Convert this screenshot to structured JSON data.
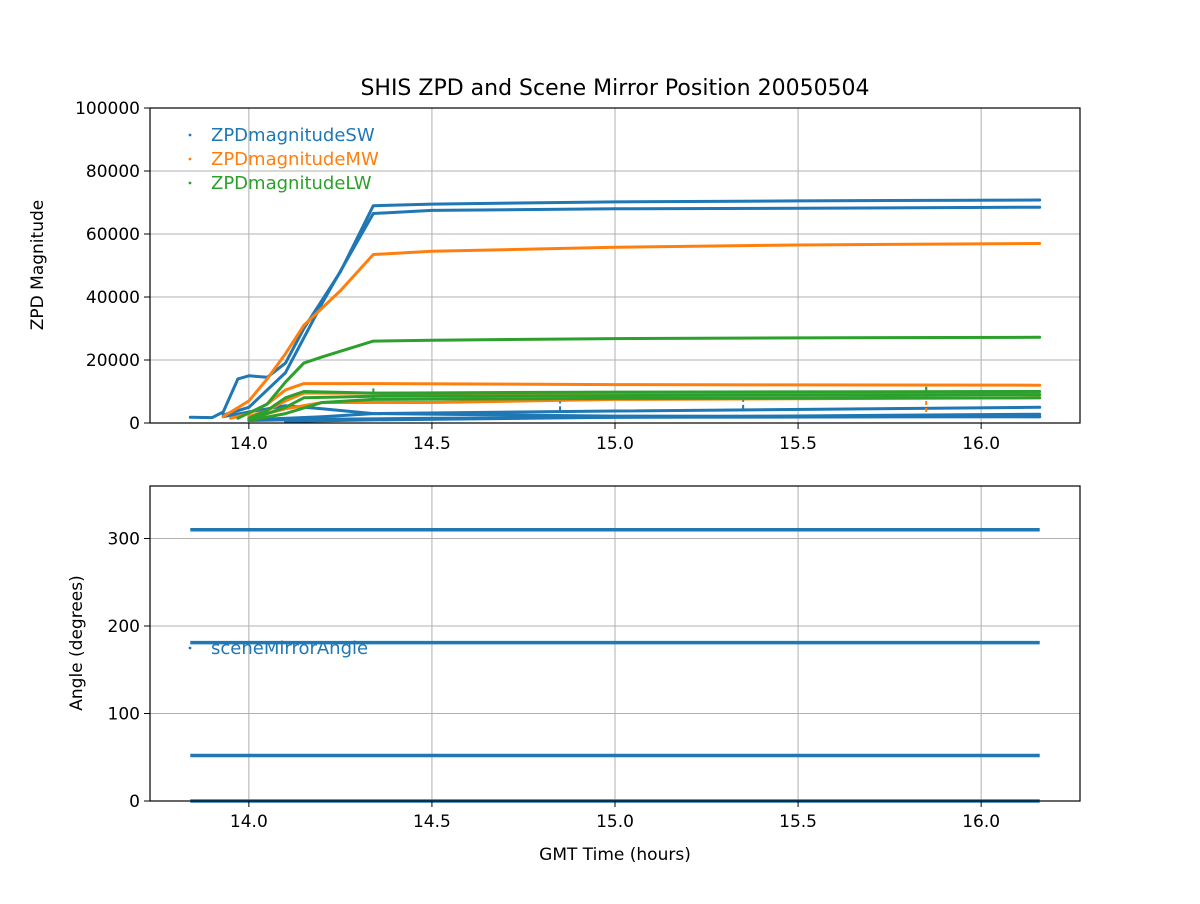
{
  "colors": {
    "sw": "#1f77b4",
    "mw": "#ff7f0e",
    "lw": "#2ca02c",
    "grid": "#b0b0b0",
    "axis": "#000000"
  },
  "figure_title": "SHIS ZPD and Scene Mirror Position 20050504",
  "chart_data": [
    {
      "type": "scatter",
      "title": "SHIS ZPD and Scene Mirror Position 20050504",
      "xlabel": "",
      "ylabel": "ZPD Magnitude",
      "xlim": [
        13.73,
        16.27
      ],
      "ylim": [
        0,
        100000
      ],
      "xticks": [
        14.0,
        14.5,
        15.0,
        15.5,
        16.0
      ],
      "xtick_labels": [
        "14.0",
        "14.5",
        "15.0",
        "15.5",
        "16.0"
      ],
      "yticks": [
        0,
        20000,
        40000,
        60000,
        80000,
        100000
      ],
      "ytick_labels": [
        "0",
        "20000",
        "40000",
        "60000",
        "80000",
        "100000"
      ],
      "grid": true,
      "legend_position": "upper-left",
      "series": [
        {
          "name": "ZPDmagnitudeSW",
          "traces": [
            {
              "x": [
                13.84,
                13.9,
                13.93,
                13.97,
                14.0,
                14.05,
                14.1,
                14.15,
                14.25,
                14.34,
                14.5,
                15.0,
                15.5,
                16.16
              ],
              "y": [
                1800,
                1700,
                3500,
                14000,
                15000,
                14500,
                19000,
                30000,
                48000,
                69000,
                69500,
                70200,
                70500,
                70800
              ]
            },
            {
              "x": [
                13.93,
                14.0,
                14.1,
                14.2,
                14.34,
                14.5,
                15.0,
                15.5,
                16.16
              ],
              "y": [
                2500,
                5000,
                16000,
                38000,
                66500,
                67500,
                68000,
                68200,
                68500
              ]
            },
            {
              "x": [
                13.93,
                14.0,
                14.1,
                14.2,
                14.34,
                15.0,
                16.16
              ],
              "y": [
                2000,
                3500,
                5500,
                4500,
                3000,
                2200,
                2000
              ]
            },
            {
              "x": [
                14.0,
                14.2,
                14.34,
                15.0,
                16.16
              ],
              "y": [
                1000,
                2000,
                3000,
                3800,
                5000
              ]
            },
            {
              "x": [
                14.0,
                14.2,
                14.5,
                15.0,
                16.16
              ],
              "y": [
                800,
                1200,
                1500,
                1800,
                2000
              ]
            },
            {
              "x": [
                14.1,
                14.34,
                15.0,
                16.16
              ],
              "y": [
                500,
                1000,
                1800,
                2800
              ]
            }
          ],
          "dashes": [
            {
              "x": 14.85,
              "y0": 4000,
              "y1": 9500
            },
            {
              "x": 15.35,
              "y0": 4500,
              "y1": 10000
            }
          ]
        },
        {
          "name": "ZPDmagnitudeMW",
          "traces": [
            {
              "x": [
                13.93,
                14.0,
                14.05,
                14.1,
                14.15,
                14.25,
                14.34,
                14.5,
                15.0,
                15.5,
                16.16
              ],
              "y": [
                2000,
                7000,
                14000,
                22000,
                31000,
                42000,
                53500,
                54500,
                55800,
                56500,
                57000
              ]
            },
            {
              "x": [
                13.95,
                14.0,
                14.05,
                14.1,
                14.15,
                14.34,
                15.0,
                15.5,
                16.16
              ],
              "y": [
                1500,
                3000,
                6000,
                10500,
                12500,
                12500,
                12200,
                12100,
                12000
              ]
            },
            {
              "x": [
                14.0,
                14.05,
                14.1,
                14.15,
                14.34,
                15.0,
                16.16
              ],
              "y": [
                2000,
                4000,
                7000,
                9500,
                9500,
                9300,
                9000
              ]
            },
            {
              "x": [
                14.0,
                14.1,
                14.2,
                14.5,
                15.0,
                16.16
              ],
              "y": [
                1500,
                4500,
                6500,
                6500,
                7500,
                8000
              ]
            }
          ],
          "dashes": [
            {
              "x": 15.85,
              "y0": 3500,
              "y1": 12500
            }
          ]
        },
        {
          "name": "ZPDmagnitudeLW",
          "traces": [
            {
              "x": [
                13.97,
                14.05,
                14.1,
                14.15,
                14.2,
                14.34,
                14.5,
                15.0,
                15.5,
                16.16
              ],
              "y": [
                1500,
                6000,
                13000,
                19000,
                21000,
                26000,
                26300,
                26800,
                27000,
                27200
              ]
            },
            {
              "x": [
                14.0,
                14.05,
                14.1,
                14.15,
                14.34,
                15.0,
                16.16
              ],
              "y": [
                1500,
                4000,
                8000,
                10000,
                9500,
                9800,
                10000
              ]
            },
            {
              "x": [
                14.0,
                14.1,
                14.15,
                14.34,
                15.0,
                16.16
              ],
              "y": [
                1000,
                5000,
                8000,
                8500,
                8700,
                9000
              ]
            },
            {
              "x": [
                14.0,
                14.1,
                14.2,
                14.34,
                15.0,
                16.16
              ],
              "y": [
                800,
                3000,
                6500,
                7500,
                7800,
                8000
              ]
            }
          ],
          "dashes": [
            {
              "x": 14.34,
              "y0": 7500,
              "y1": 11000
            },
            {
              "x": 15.85,
              "y0": 8000,
              "y1": 12000
            }
          ]
        }
      ]
    },
    {
      "type": "scatter",
      "title": "",
      "xlabel": "GMT Time (hours)",
      "ylabel": "Angle (degrees)",
      "xlim": [
        13.73,
        16.27
      ],
      "ylim": [
        0,
        360
      ],
      "xticks": [
        14.0,
        14.5,
        15.0,
        15.5,
        16.0
      ],
      "xtick_labels": [
        "14.0",
        "14.5",
        "15.0",
        "15.5",
        "16.0"
      ],
      "yticks": [
        0,
        100,
        200,
        300
      ],
      "ytick_labels": [
        "0",
        "100",
        "200",
        "300"
      ],
      "grid": true,
      "legend_position": "upper-left",
      "series": [
        {
          "name": "sceneMirrorAngle",
          "x_range": [
            13.84,
            16.16
          ],
          "levels": [
            310,
            181,
            52,
            0
          ]
        }
      ]
    }
  ]
}
